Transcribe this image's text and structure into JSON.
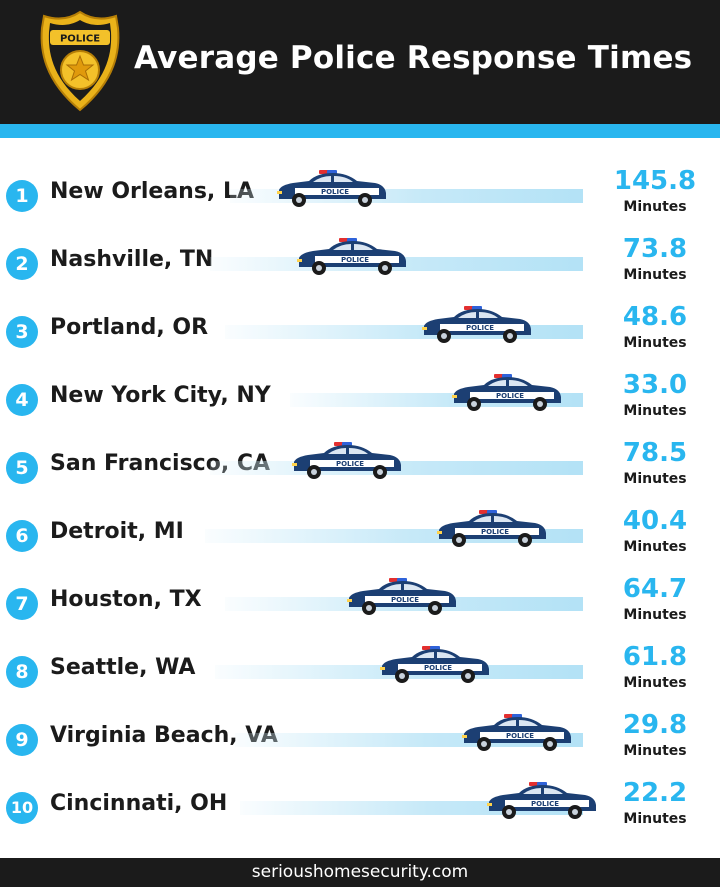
{
  "header": {
    "title": "Average Police Response Times",
    "badge_text": "POLICE",
    "badge_icon": "star-icon"
  },
  "footer": {
    "text": "serioushomesecurity.com"
  },
  "colors": {
    "accent": "#29b6ef",
    "dark": "#1b1b1b",
    "car_body": "#1c3f73"
  },
  "car_label": "POLICE",
  "chart_data": {
    "type": "bar",
    "title": "Average Police Response Times",
    "unit": "Minutes",
    "categories": [
      "New Orleans, LA",
      "Nashville, TN",
      "Portland, OR",
      "New York City, NY",
      "San Francisco, CA",
      "Detroit, MI",
      "Houston, TX",
      "Seattle, WA",
      "Virginia Beach, VA",
      "Cincinnati, OH"
    ],
    "ranks": [
      "1",
      "2",
      "3",
      "4",
      "5",
      "6",
      "7",
      "8",
      "9",
      "10"
    ],
    "values": [
      145.8,
      73.8,
      48.6,
      33.0,
      78.5,
      40.4,
      64.7,
      61.8,
      29.8,
      22.2
    ],
    "value_labels": [
      "145.8",
      "73.8",
      "48.6",
      "33.0",
      "78.5",
      "40.4",
      "64.7",
      "61.8",
      "29.8",
      "22.2"
    ]
  }
}
